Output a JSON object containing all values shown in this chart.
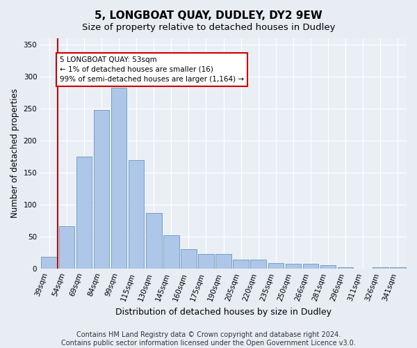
{
  "title": "5, LONGBOAT QUAY, DUDLEY, DY2 9EW",
  "subtitle": "Size of property relative to detached houses in Dudley",
  "xlabel": "Distribution of detached houses by size in Dudley",
  "ylabel": "Number of detached properties",
  "categories": [
    "39sqm",
    "54sqm",
    "69sqm",
    "84sqm",
    "99sqm",
    "115sqm",
    "130sqm",
    "145sqm",
    "160sqm",
    "175sqm",
    "190sqm",
    "205sqm",
    "220sqm",
    "235sqm",
    "250sqm",
    "266sqm",
    "281sqm",
    "296sqm",
    "311sqm",
    "326sqm",
    "341sqm"
  ],
  "values": [
    18,
    66,
    175,
    248,
    283,
    170,
    87,
    52,
    30,
    23,
    23,
    14,
    14,
    9,
    7,
    7,
    5,
    2,
    0,
    2,
    2
  ],
  "bar_color": "#aec6e8",
  "bar_edge_color": "#6699bb",
  "vline_x_index": 1,
  "vline_color": "#cc0000",
  "annotation_line1": "5 LONGBOAT QUAY: 53sqm",
  "annotation_line2": "← 1% of detached houses are smaller (16)",
  "annotation_line3": "99% of semi-detached houses are larger (1,164) →",
  "annotation_box_color": "#ffffff",
  "annotation_box_edge": "#cc0000",
  "ylim": [
    0,
    360
  ],
  "yticks": [
    0,
    50,
    100,
    150,
    200,
    250,
    300,
    350
  ],
  "background_color": "#e8edf4",
  "plot_bg_color": "#eaeff6",
  "footer_line1": "Contains HM Land Registry data © Crown copyright and database right 2024.",
  "footer_line2": "Contains public sector information licensed under the Open Government Licence v3.0.",
  "title_fontsize": 11,
  "subtitle_fontsize": 9.5,
  "xlabel_fontsize": 9,
  "ylabel_fontsize": 8.5,
  "tick_fontsize": 7.5,
  "annotation_fontsize": 7.5,
  "footer_fontsize": 7
}
